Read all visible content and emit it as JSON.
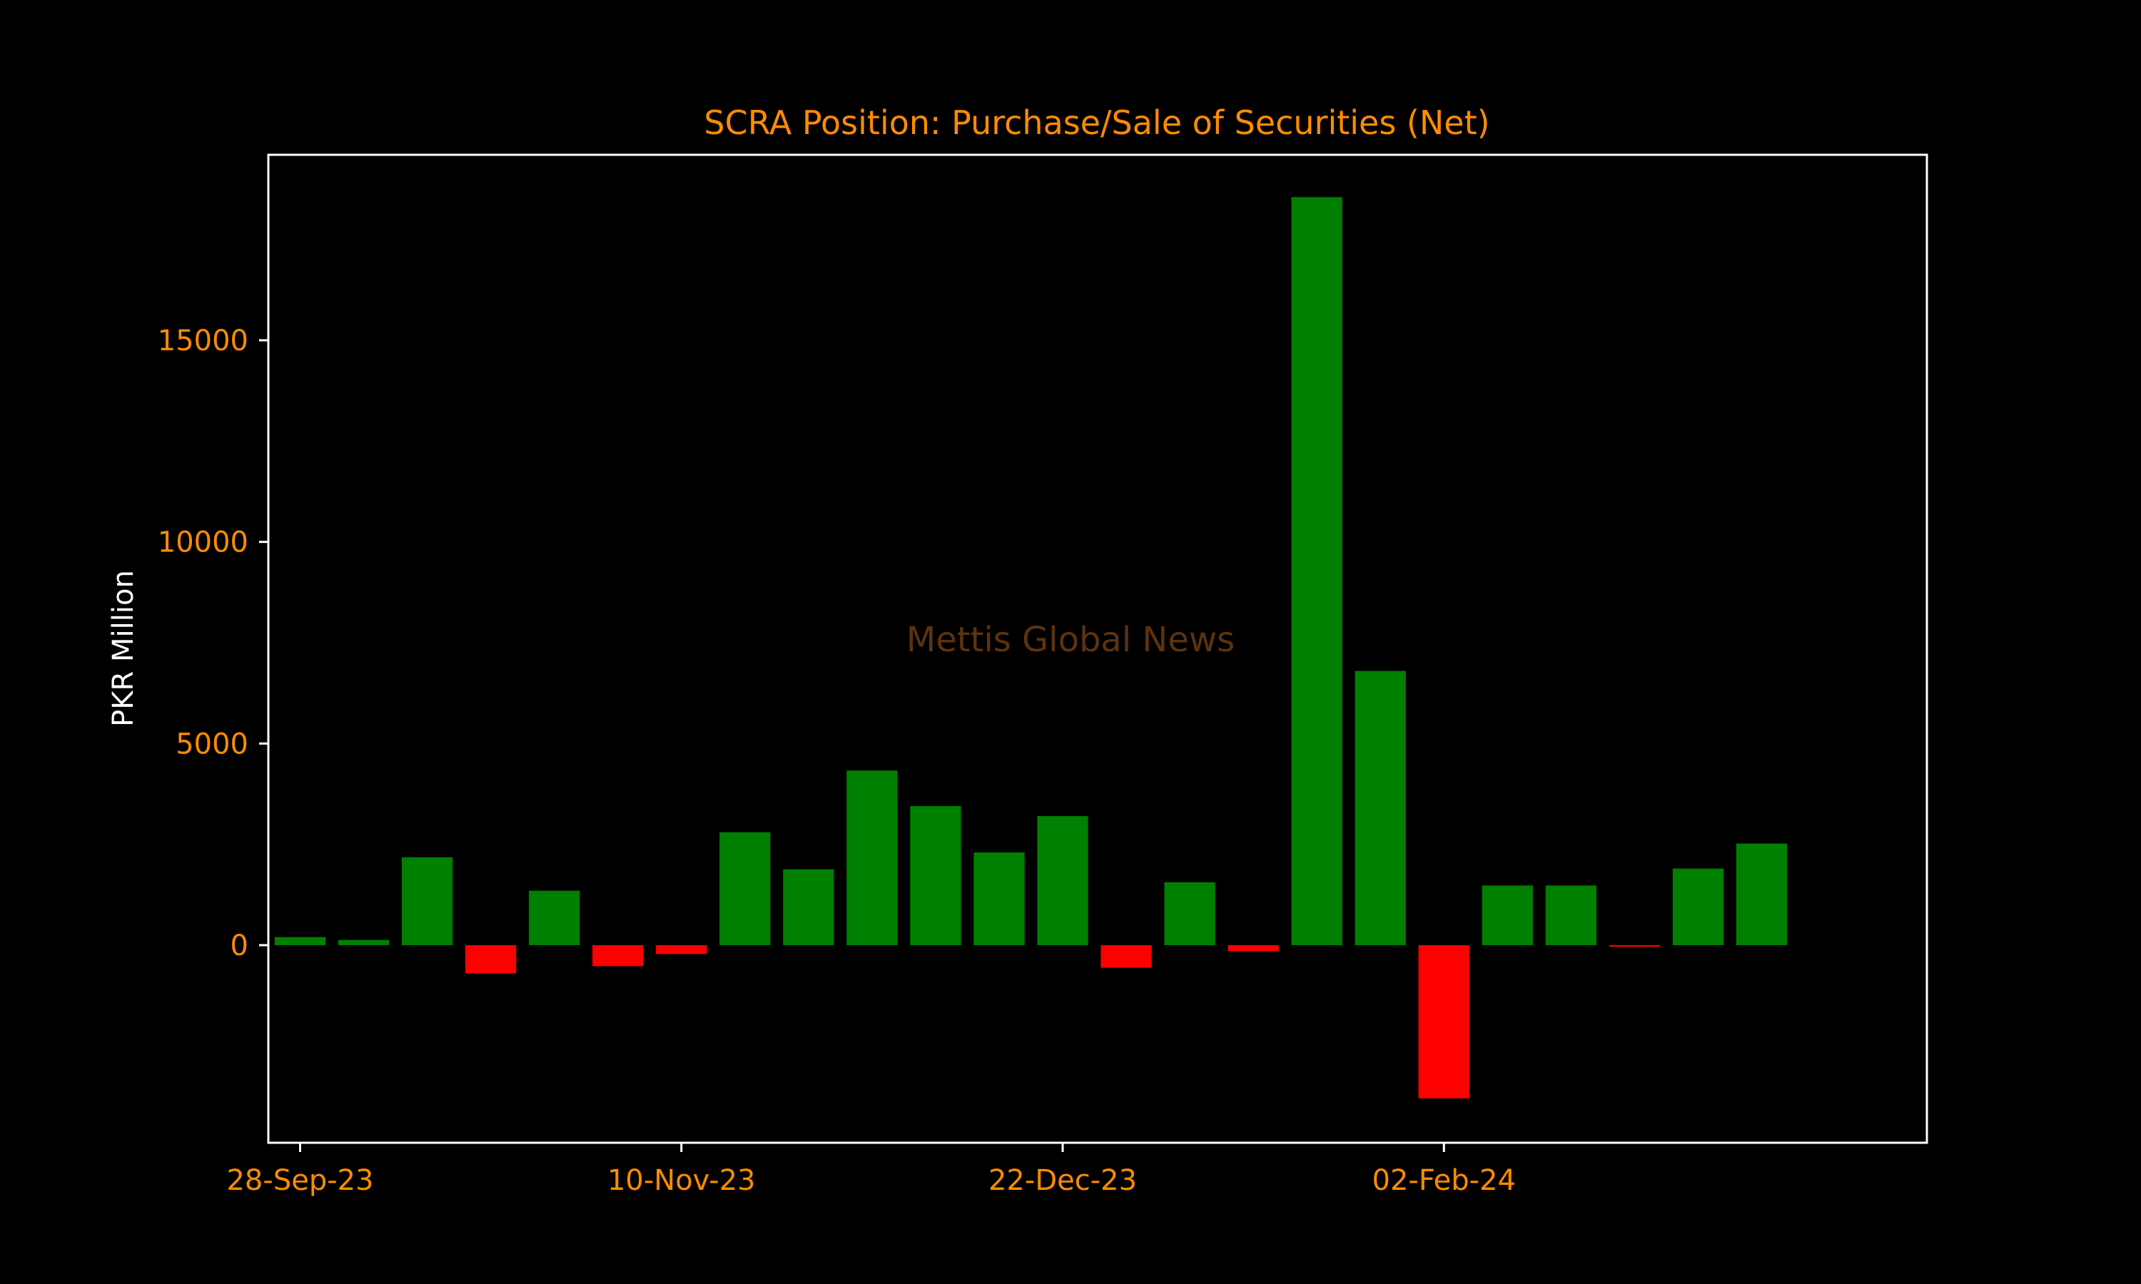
{
  "colors": {
    "background": "#000000",
    "title": "#ff8c00",
    "tick_labels": "#ff8c00",
    "axis_label": "#ffffff",
    "frame": "#ffffff",
    "positive_bar": "#008000",
    "negative_bar": "#ff0000",
    "watermark": "#5c3310"
  },
  "chart_data": {
    "type": "bar",
    "title": "SCRA Position: Purchase/Sale of Securities (Net)",
    "xlabel": "",
    "ylabel": "PKR Million",
    "watermark": "Mettis Global News",
    "ylim": [
      -4900,
      19600
    ],
    "yticks": [
      0,
      5000,
      10000,
      15000
    ],
    "ytick_labels": [
      "0",
      "5000",
      "10000",
      "15000"
    ],
    "xlim": [
      -0.5,
      25.6
    ],
    "xticks": [
      0,
      6,
      12,
      18
    ],
    "xtick_labels": [
      "28-Sep-23",
      "10-Nov-23",
      "22-Dec-23",
      "02-Feb-24"
    ],
    "grid": false,
    "legend": "none",
    "positive_color": "#008000",
    "negative_color": "#ff0000",
    "values": [
      200,
      130,
      2180,
      -700,
      1350,
      -520,
      -220,
      2800,
      1880,
      4330,
      3450,
      2300,
      3200,
      -560,
      1560,
      -150,
      18550,
      6800,
      -3800,
      1480,
      1480,
      -40,
      1900,
      2520
    ]
  }
}
